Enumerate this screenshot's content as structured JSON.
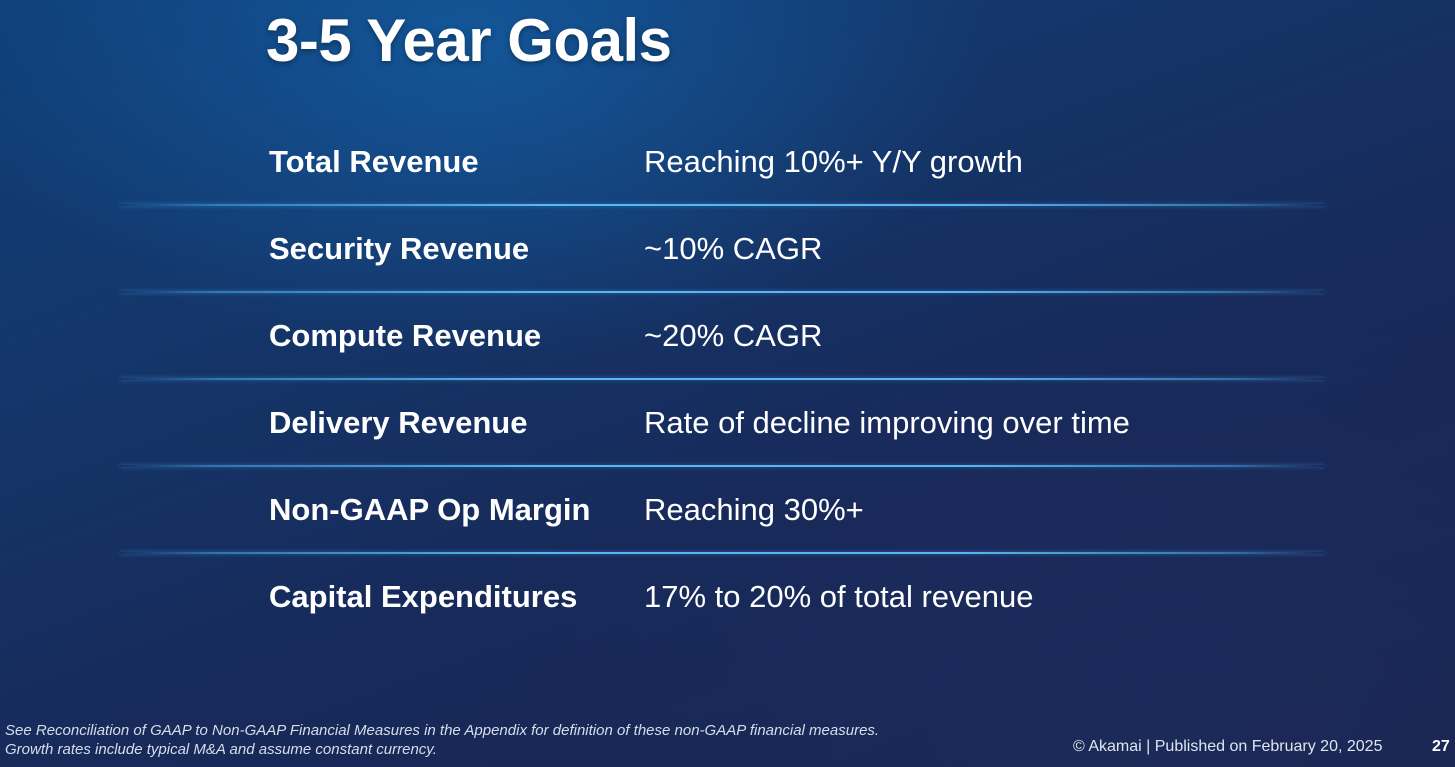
{
  "slide": {
    "title": "3-5 Year Goals"
  },
  "goals": [
    {
      "metric": "Total Revenue",
      "target": "Reaching 10%+ Y/Y growth"
    },
    {
      "metric": "Security Revenue",
      "target": "~10% CAGR"
    },
    {
      "metric": "Compute Revenue",
      "target": "~20% CAGR"
    },
    {
      "metric": "Delivery Revenue",
      "target": "Rate of decline improving over time"
    },
    {
      "metric": "Non-GAAP Op Margin",
      "target": "Reaching 30%+"
    },
    {
      "metric": "Capital Expenditures",
      "target": "17% to 20% of total revenue"
    }
  ],
  "footer": {
    "footnote_line_1": "See Reconciliation of GAAP to Non-GAAP Financial Measures in the Appendix for definition of these non-GAAP financial measures.",
    "footnote_line_2": "Growth rates include typical M&A and assume constant currency.",
    "copyright": "© Akamai  |  Published on February 20, 2025",
    "page_number": "27"
  },
  "colors": {
    "background_top": "#0f3f78",
    "background_bottom": "#19244f",
    "divider": "#5abefa",
    "text": "#ffffff"
  }
}
